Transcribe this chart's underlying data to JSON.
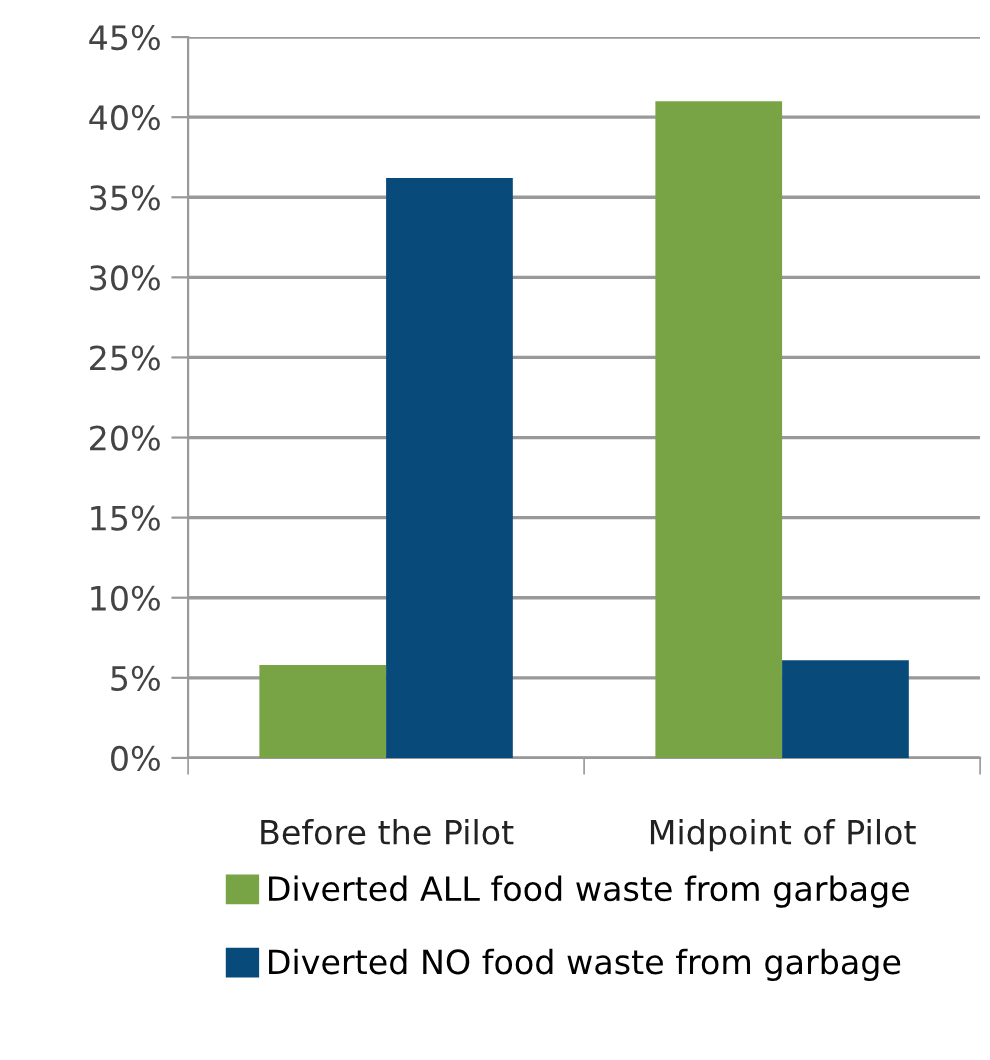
{
  "chart_data": {
    "type": "bar",
    "categories": [
      "Before the Pilot",
      "Midpoint of Pilot"
    ],
    "series": [
      {
        "name": "Diverted ALL food waste from garbage",
        "color": "#79a446",
        "values": [
          5.8,
          41.0
        ]
      },
      {
        "name": "Diverted NO food waste from garbage",
        "color": "#084a7a",
        "values": [
          36.2,
          6.1
        ]
      }
    ],
    "ylim": [
      0,
      45
    ],
    "yticks": [
      {
        "value": 0,
        "label": "0%"
      },
      {
        "value": 5,
        "label": "5%"
      },
      {
        "value": 10,
        "label": "10%"
      },
      {
        "value": 15,
        "label": "15%"
      },
      {
        "value": 20,
        "label": "20%"
      },
      {
        "value": 25,
        "label": "25%"
      },
      {
        "value": 30,
        "label": "30%"
      },
      {
        "value": 35,
        "label": "35%"
      },
      {
        "value": 40,
        "label": "40%"
      },
      {
        "value": 45,
        "label": "45%"
      }
    ],
    "grid": "y",
    "legend": "bottom"
  }
}
